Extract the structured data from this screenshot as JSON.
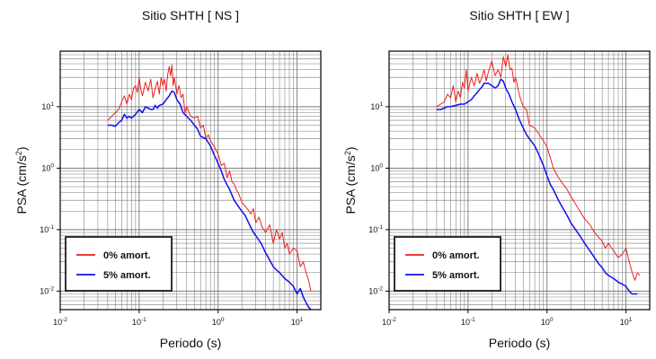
{
  "colors": {
    "damp0": "#ee2020",
    "damp5": "#1010ee",
    "grid": "#7a7a7a",
    "frame": "#000000"
  },
  "legend_placement": "bottom-left",
  "chart_data": [
    {
      "type": "line",
      "title": "Sitio SHTH [ NS ]",
      "xlabel": "Periodo (s)",
      "ylabel": "PSA (cm/s2)",
      "xscale": "log",
      "yscale": "log",
      "xlim": [
        0.01,
        20
      ],
      "ylim": [
        0.005,
        80
      ],
      "grid": true,
      "xtick_labels": [
        {
          "base": "10",
          "exp": "-2"
        },
        {
          "base": "10",
          "exp": "-1"
        },
        {
          "base": "10",
          "exp": "0"
        },
        {
          "base": "10",
          "exp": "1"
        }
      ],
      "ytick_labels": [
        {
          "base": "10",
          "exp": "-2"
        },
        {
          "base": "10",
          "exp": "-1"
        },
        {
          "base": "10",
          "exp": "0"
        },
        {
          "base": "10",
          "exp": "1"
        }
      ],
      "series": [
        {
          "name": "0% amort.",
          "color": "#ee2020",
          "x": [
            0.04,
            0.045,
            0.05,
            0.055,
            0.06,
            0.065,
            0.07,
            0.075,
            0.08,
            0.085,
            0.09,
            0.095,
            0.1,
            0.105,
            0.11,
            0.12,
            0.13,
            0.14,
            0.15,
            0.16,
            0.17,
            0.18,
            0.19,
            0.2,
            0.21,
            0.22,
            0.23,
            0.24,
            0.25,
            0.26,
            0.27,
            0.28,
            0.3,
            0.32,
            0.34,
            0.36,
            0.38,
            0.4,
            0.45,
            0.5,
            0.55,
            0.6,
            0.65,
            0.7,
            0.75,
            0.8,
            0.9,
            1.0,
            1.1,
            1.2,
            1.3,
            1.4,
            1.5,
            1.6,
            1.7,
            1.8,
            2.0,
            2.2,
            2.4,
            2.6,
            2.8,
            3.0,
            3.3,
            3.6,
            4.0,
            4.5,
            5.0,
            5.5,
            6.0,
            6.5,
            7.0,
            7.5,
            8.0,
            9.0,
            10,
            11,
            12,
            13,
            14,
            15
          ],
          "y": [
            6,
            7,
            8,
            9,
            12,
            15,
            11,
            16,
            13,
            20,
            22,
            17,
            30,
            19,
            15,
            25,
            18,
            28,
            14,
            20,
            26,
            16,
            30,
            22,
            28,
            18,
            33,
            45,
            32,
            48,
            22,
            30,
            16,
            22,
            14,
            16,
            8,
            10,
            7,
            6.5,
            7,
            4.5,
            5,
            3,
            3.5,
            2.8,
            2.2,
            1.7,
            1.1,
            1.2,
            0.7,
            0.9,
            0.6,
            0.55,
            0.45,
            0.4,
            0.28,
            0.24,
            0.21,
            0.18,
            0.22,
            0.13,
            0.16,
            0.11,
            0.09,
            0.12,
            0.06,
            0.1,
            0.07,
            0.09,
            0.05,
            0.06,
            0.04,
            0.05,
            0.045,
            0.025,
            0.03,
            0.02,
            0.015,
            0.01
          ]
        },
        {
          "name": "5% amort.",
          "color": "#1010ee",
          "x": [
            0.04,
            0.045,
            0.05,
            0.055,
            0.06,
            0.065,
            0.07,
            0.075,
            0.08,
            0.09,
            0.1,
            0.11,
            0.12,
            0.13,
            0.14,
            0.15,
            0.16,
            0.17,
            0.18,
            0.2,
            0.22,
            0.24,
            0.26,
            0.28,
            0.3,
            0.33,
            0.36,
            0.4,
            0.45,
            0.5,
            0.55,
            0.6,
            0.7,
            0.8,
            0.9,
            1.0,
            1.1,
            1.2,
            1.4,
            1.6,
            1.8,
            2.0,
            2.2,
            2.5,
            2.8,
            3.0,
            3.5,
            4.0,
            4.5,
            5.0,
            5.5,
            6.0,
            7.0,
            8.0,
            9.0,
            10,
            11,
            12,
            13,
            14,
            15
          ],
          "y": [
            5,
            5,
            4.8,
            5.5,
            6,
            7.5,
            6.5,
            7,
            6.5,
            7.5,
            9,
            8,
            10,
            9.5,
            9,
            9,
            10.5,
            9.5,
            10.5,
            11,
            13,
            15,
            18,
            17,
            13,
            11,
            8,
            7,
            6,
            5,
            4.3,
            3.3,
            3,
            2.3,
            1.6,
            1.2,
            0.9,
            0.65,
            0.45,
            0.3,
            0.24,
            0.2,
            0.17,
            0.12,
            0.09,
            0.08,
            0.06,
            0.042,
            0.032,
            0.025,
            0.022,
            0.02,
            0.016,
            0.014,
            0.012,
            0.009,
            0.011,
            0.008,
            0.0065,
            0.0055,
            0.005
          ]
        }
      ]
    },
    {
      "type": "line",
      "title": "Sitio SHTH [ EW ]",
      "xlabel": "Periodo (s)",
      "ylabel": "PSA (cm/s2)",
      "xscale": "log",
      "yscale": "log",
      "xlim": [
        0.01,
        20
      ],
      "ylim": [
        0.005,
        80
      ],
      "grid": true,
      "xtick_labels": [
        {
          "base": "10",
          "exp": "-2"
        },
        {
          "base": "10",
          "exp": "-1"
        },
        {
          "base": "10",
          "exp": "0"
        },
        {
          "base": "10",
          "exp": "1"
        }
      ],
      "ytick_labels": [
        {
          "base": "10",
          "exp": "-2"
        },
        {
          "base": "10",
          "exp": "-1"
        },
        {
          "base": "10",
          "exp": "0"
        },
        {
          "base": "10",
          "exp": "1"
        }
      ],
      "series": [
        {
          "name": "0% amort.",
          "color": "#ee2020",
          "x": [
            0.04,
            0.045,
            0.05,
            0.055,
            0.06,
            0.065,
            0.07,
            0.075,
            0.08,
            0.085,
            0.09,
            0.095,
            0.1,
            0.11,
            0.12,
            0.13,
            0.14,
            0.15,
            0.16,
            0.17,
            0.18,
            0.2,
            0.22,
            0.24,
            0.26,
            0.28,
            0.3,
            0.32,
            0.34,
            0.36,
            0.38,
            0.4,
            0.45,
            0.5,
            0.55,
            0.6,
            0.7,
            0.8,
            0.9,
            1.0,
            1.1,
            1.2,
            1.4,
            1.6,
            1.8,
            2.0,
            2.3,
            2.6,
            3.0,
            3.5,
            4.0,
            4.5,
            5.0,
            5.5,
            6.0,
            7.0,
            8.0,
            9.0,
            10,
            11,
            12,
            13,
            14,
            15
          ],
          "y": [
            10,
            11,
            12,
            16,
            14,
            22,
            12,
            18,
            14,
            25,
            20,
            40,
            18,
            30,
            22,
            35,
            24,
            30,
            40,
            26,
            36,
            55,
            32,
            40,
            30,
            65,
            45,
            70,
            40,
            42,
            25,
            30,
            15,
            10,
            9,
            5,
            4.5,
            3.5,
            2.8,
            2.2,
            1.5,
            1,
            0.7,
            0.55,
            0.45,
            0.35,
            0.26,
            0.2,
            0.15,
            0.12,
            0.09,
            0.075,
            0.065,
            0.05,
            0.06,
            0.045,
            0.035,
            0.04,
            0.05,
            0.03,
            0.02,
            0.015,
            0.02,
            0.018
          ]
        },
        {
          "name": "5% amort.",
          "color": "#1010ee",
          "x": [
            0.04,
            0.045,
            0.05,
            0.055,
            0.06,
            0.07,
            0.08,
            0.09,
            0.1,
            0.11,
            0.12,
            0.13,
            0.14,
            0.15,
            0.16,
            0.18,
            0.2,
            0.22,
            0.24,
            0.26,
            0.28,
            0.3,
            0.33,
            0.36,
            0.4,
            0.45,
            0.5,
            0.55,
            0.6,
            0.7,
            0.8,
            0.9,
            1.0,
            1.1,
            1.2,
            1.4,
            1.6,
            1.8,
            2.0,
            2.3,
            2.6,
            3.0,
            3.5,
            4.0,
            4.5,
            5.0,
            5.5,
            6.0,
            7.0,
            8.0,
            9.0,
            10,
            11,
            12,
            13,
            14
          ],
          "y": [
            9,
            9,
            9.5,
            10,
            10,
            10.5,
            11,
            11,
            12,
            13,
            15,
            17,
            19,
            21,
            24,
            24,
            22,
            20,
            22,
            28,
            26,
            20,
            16,
            12,
            9,
            6,
            4.5,
            3.5,
            3,
            2.3,
            1.6,
            1.1,
            0.75,
            0.55,
            0.45,
            0.3,
            0.22,
            0.17,
            0.13,
            0.1,
            0.08,
            0.06,
            0.045,
            0.035,
            0.028,
            0.024,
            0.02,
            0.018,
            0.016,
            0.014,
            0.013,
            0.012,
            0.01,
            0.009,
            0.009,
            0.009
          ]
        }
      ]
    }
  ]
}
